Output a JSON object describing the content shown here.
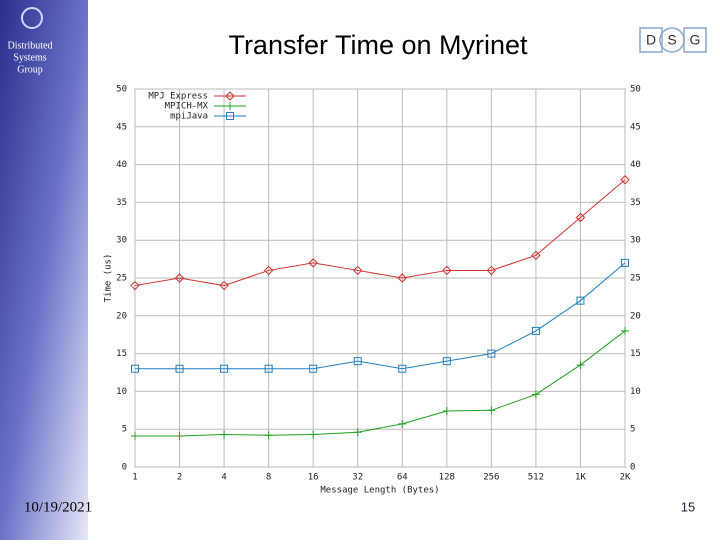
{
  "slide": {
    "group": [
      "Distributed",
      "Systems",
      "Group"
    ],
    "logo": [
      "D",
      "S",
      "G"
    ],
    "date": "10/19/2021",
    "page": "15"
  },
  "chart_data": {
    "type": "line",
    "title": "Transfer Time on Myrinet",
    "x_label": "Message Length (Bytes)",
    "y_label": "Time (us)",
    "categories": [
      "1",
      "2",
      "4",
      "8",
      "16",
      "32",
      "64",
      "128",
      "256",
      "512",
      "1K",
      "2K"
    ],
    "series": [
      {
        "name": "MPJ Express",
        "color": "#d03030",
        "marker": "diamond",
        "values": [
          24,
          25,
          24,
          26,
          27,
          26,
          25,
          26,
          26,
          28,
          33,
          38
        ]
      },
      {
        "name": "MPICH-MX",
        "color": "#20a020",
        "marker": "plus",
        "values": [
          4.1,
          4.1,
          4.3,
          4.2,
          4.3,
          4.6,
          5.7,
          7.4,
          7.5,
          9.6,
          13.5,
          18
        ]
      },
      {
        "name": "mpiJava",
        "color": "#2080c0",
        "marker": "square",
        "values": [
          13,
          13,
          13,
          13,
          13,
          14,
          13,
          14,
          15,
          18,
          22,
          27
        ]
      }
    ],
    "ylim": [
      0,
      50
    ],
    "yticks": [
      0,
      5,
      10,
      15,
      20,
      25,
      30,
      35,
      40,
      45,
      50
    ],
    "grid": true,
    "legend": "top-left"
  }
}
